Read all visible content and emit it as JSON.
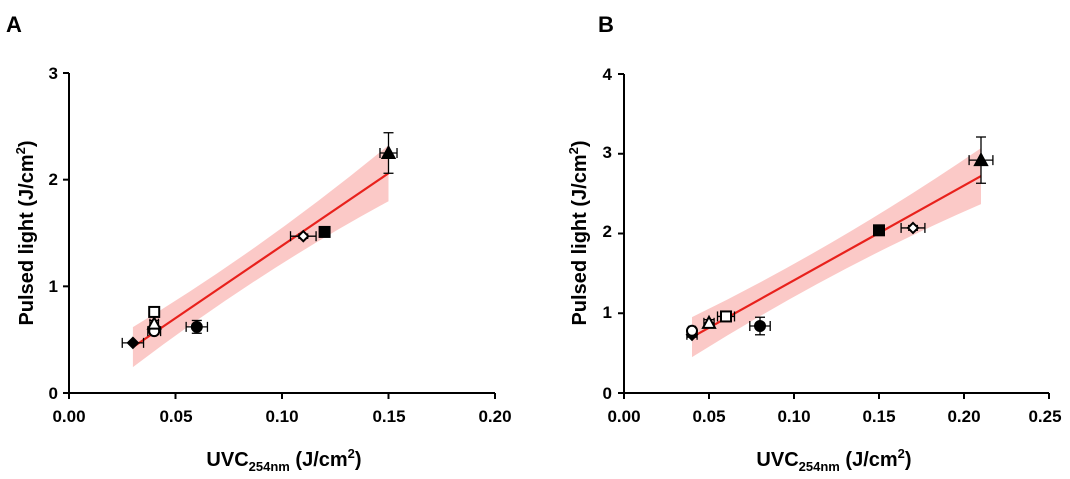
{
  "chart_data": [
    {
      "type": "scatter",
      "panel_label": "A",
      "xlabel": {
        "main": "UVC",
        "sub": "254nm",
        "unit_pre": " (J/cm",
        "unit_sup": "2",
        "unit_post": ")"
      },
      "ylabel": {
        "main": "Pulsed light (J/cm",
        "sup": "2",
        "post": ")"
      },
      "xlim": [
        0,
        0.2
      ],
      "ylim": [
        0,
        3
      ],
      "xticks": [
        "0.00",
        "0.05",
        "0.10",
        "0.15",
        "0.20"
      ],
      "yticks": [
        "0",
        "1",
        "2",
        "3"
      ],
      "grid": false,
      "fit": {
        "x_start": 0.03,
        "x_end": 0.15,
        "y_start": 0.43,
        "y_end": 2.06,
        "color": "#e8211c",
        "band_color": "#fbc9c7"
      },
      "points": [
        {
          "marker": "diamond-filled",
          "x": 0.03,
          "y": 0.47,
          "xerr": 0.005,
          "yerr": 0
        },
        {
          "marker": "circle-open",
          "x": 0.04,
          "y": 0.58,
          "xerr": 0.003,
          "yerr": 0.03
        },
        {
          "marker": "triangle-open",
          "x": 0.04,
          "y": 0.65,
          "xerr": 0.002,
          "yerr": 0.03
        },
        {
          "marker": "square-open",
          "x": 0.04,
          "y": 0.76,
          "xerr": 0.002,
          "yerr": 0.03
        },
        {
          "marker": "circle-filled",
          "x": 0.06,
          "y": 0.62,
          "xerr": 0.005,
          "yerr": 0.06
        },
        {
          "marker": "diamond-open",
          "x": 0.11,
          "y": 1.47,
          "xerr": 0.006,
          "yerr": 0.02
        },
        {
          "marker": "square-filled",
          "x": 0.12,
          "y": 1.51,
          "xerr": 0.002,
          "yerr": 0.02
        },
        {
          "marker": "triangle-filled",
          "x": 0.15,
          "y": 2.25,
          "xerr": 0.004,
          "yerr": 0.19
        }
      ]
    },
    {
      "type": "scatter",
      "panel_label": "B",
      "xlabel": {
        "main": "UVC",
        "sub": "254nm",
        "unit_pre": " (J/cm",
        "unit_sup": "2",
        "unit_post": ")"
      },
      "ylabel": {
        "main": "Pulsed light (J/cm",
        "sup": "2",
        "post": ")"
      },
      "xlim": [
        0,
        0.25
      ],
      "ylim": [
        0,
        4
      ],
      "xticks": [
        "0.00",
        "0.05",
        "0.10",
        "0.15",
        "0.20",
        "0.25"
      ],
      "yticks": [
        "0",
        "1",
        "2",
        "3",
        "4"
      ],
      "grid": false,
      "fit": {
        "x_start": 0.04,
        "x_end": 0.21,
        "y_start": 0.7,
        "y_end": 2.72,
        "color": "#e8211c",
        "band_color": "#fbc9c7"
      },
      "points": [
        {
          "marker": "diamond-filled",
          "x": 0.04,
          "y": 0.73,
          "xerr": 0.003,
          "yerr": 0.03
        },
        {
          "marker": "circle-open",
          "x": 0.04,
          "y": 0.78,
          "xerr": 0.002,
          "yerr": 0.03
        },
        {
          "marker": "triangle-open",
          "x": 0.05,
          "y": 0.88,
          "xerr": 0.003,
          "yerr": 0.04
        },
        {
          "marker": "square-open",
          "x": 0.06,
          "y": 0.96,
          "xerr": 0.005,
          "yerr": 0.05
        },
        {
          "marker": "circle-filled",
          "x": 0.08,
          "y": 0.84,
          "xerr": 0.006,
          "yerr": 0.11
        },
        {
          "marker": "square-filled",
          "x": 0.15,
          "y": 2.04,
          "xerr": 0.002,
          "yerr": 0.03
        },
        {
          "marker": "diamond-open",
          "x": 0.17,
          "y": 2.07,
          "xerr": 0.007,
          "yerr": 0.03
        },
        {
          "marker": "triangle-filled",
          "x": 0.21,
          "y": 2.92,
          "xerr": 0.007,
          "yerr": 0.29
        }
      ]
    }
  ]
}
